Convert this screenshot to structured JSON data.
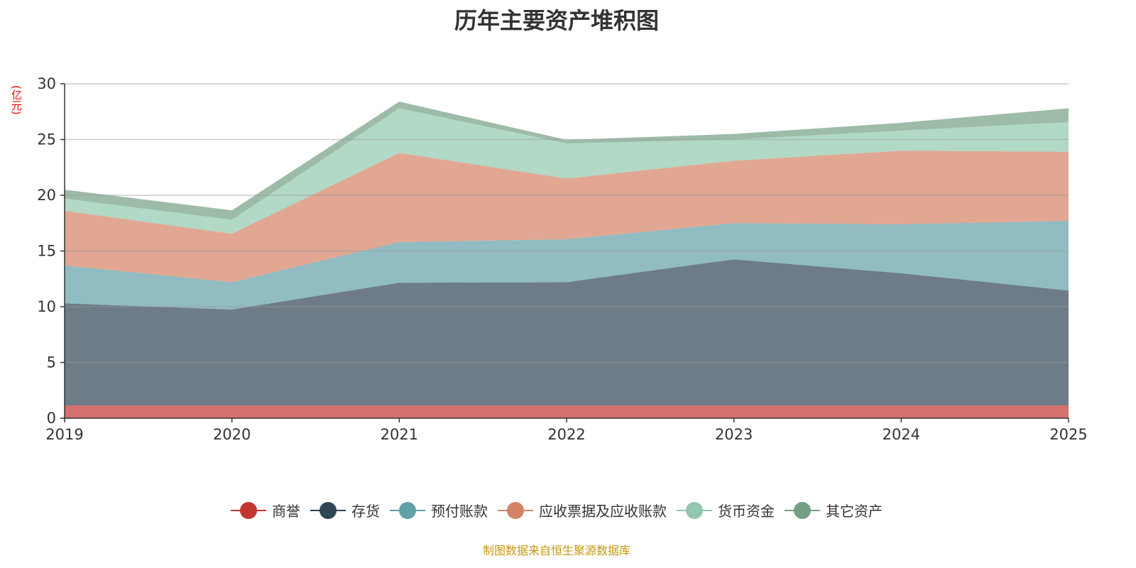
{
  "chart_data": {
    "type": "area",
    "stacked": true,
    "title": "历年主要资产堆积图",
    "ylabel": "(亿元)",
    "xlabel": "",
    "x": [
      "2019",
      "2020",
      "2021",
      "2022",
      "2023",
      "2024",
      "2025"
    ],
    "ylim": [
      0,
      30
    ],
    "yticks": [
      0,
      5,
      10,
      15,
      20,
      25,
      30
    ],
    "grid": true,
    "legend_position": "bottom",
    "series": [
      {
        "name": "商誉",
        "color": "#c23531",
        "values": [
          1.15,
          1.15,
          1.15,
          1.15,
          1.15,
          1.15,
          1.15
        ]
      },
      {
        "name": "存货",
        "color": "#2f4554",
        "values": [
          9.15,
          8.6,
          11.0,
          11.05,
          13.1,
          11.85,
          10.3
        ]
      },
      {
        "name": "预付账款",
        "color": "#61a0a8",
        "values": [
          3.4,
          2.45,
          3.65,
          3.85,
          3.25,
          4.4,
          6.25
        ]
      },
      {
        "name": "应收票据及应收账款",
        "color": "#d48265",
        "values": [
          4.9,
          4.35,
          8.0,
          5.45,
          5.6,
          6.6,
          6.2
        ]
      },
      {
        "name": "货币资金",
        "color": "#91c7ae",
        "values": [
          1.1,
          1.25,
          4.0,
          3.15,
          1.9,
          1.8,
          2.65
        ]
      },
      {
        "name": "其它资产",
        "color": "#749f83",
        "values": [
          0.8,
          0.85,
          0.6,
          0.32,
          0.5,
          0.7,
          1.25
        ]
      }
    ]
  },
  "source": "制图数据来自恒生聚源数据库"
}
